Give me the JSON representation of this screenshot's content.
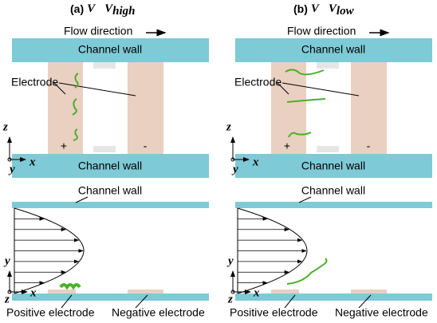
{
  "panels": [
    {
      "label": "(a)",
      "var": "V",
      "threshold": "V",
      "threshold_sub": "high",
      "flow": "Flow direction",
      "top_wall": "Channel wall",
      "bottom_wall": "Channel wall",
      "electrode": "Electrode",
      "plus": "+",
      "minus": "-",
      "axes": {
        "z": "z",
        "y": "y",
        "x": "x"
      },
      "profile_wall": "Channel wall",
      "profile_axes": {
        "y": "y",
        "z": "z",
        "x": "x"
      },
      "positive": "Positive electrode",
      "negative": "Negative electrode"
    },
    {
      "label": "(b)",
      "var": "V",
      "threshold": "V",
      "threshold_sub": "low",
      "flow": "Flow direction",
      "top_wall": "Channel wall",
      "bottom_wall": "Channel wall",
      "electrode": "Electrode",
      "plus": "+",
      "minus": "-",
      "axes": {
        "z": "z",
        "y": "y",
        "x": "x"
      },
      "profile_wall": "Channel wall",
      "profile_axes": {
        "y": "y",
        "z": "z",
        "x": "x"
      },
      "positive": "Positive electrode",
      "negative": "Negative electrode"
    }
  ]
}
